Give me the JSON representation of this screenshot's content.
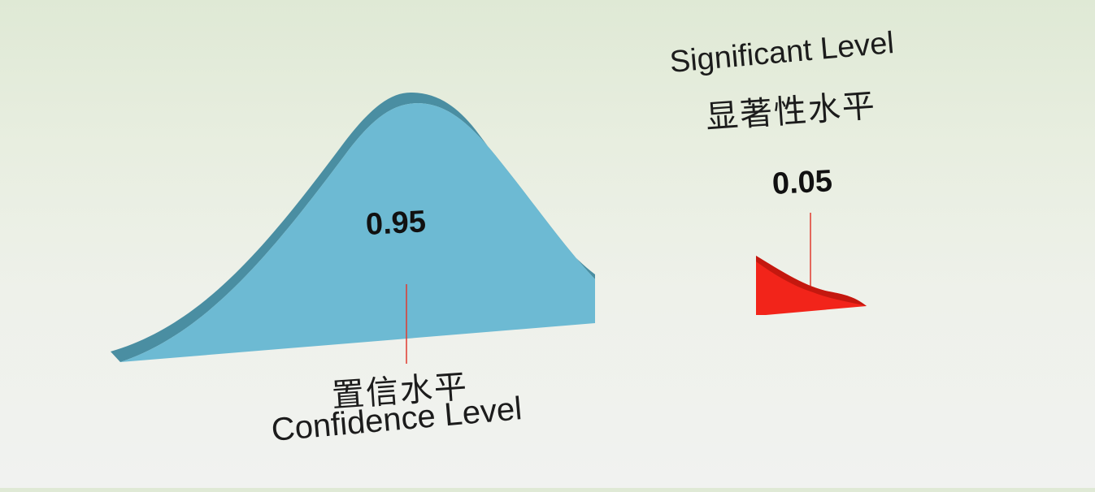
{
  "confidence": {
    "value": "0.95",
    "label_cn": "置信水平",
    "label_en": "Confidence Level",
    "color": "#6dbad3"
  },
  "significance": {
    "value": "0.05",
    "label_en": "Significant Level",
    "label_cn": "显著性水平",
    "color": "#f2241a"
  },
  "pointer_color": "#e03a2e"
}
